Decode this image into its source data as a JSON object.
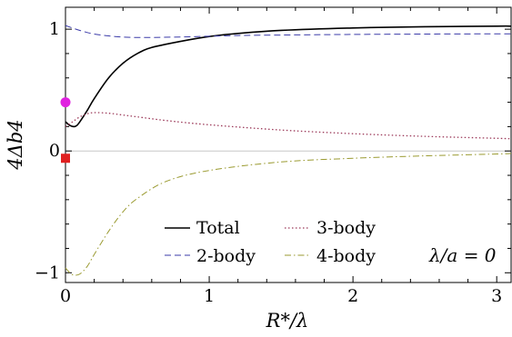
{
  "chart_data": {
    "type": "line",
    "xlabel": "R*/λ",
    "ylabel": "4Δb4",
    "xlim": [
      0,
      3.1
    ],
    "ylim": [
      -1.08,
      1.18
    ],
    "x_ticks": [
      {
        "value": 0,
        "label": "0"
      },
      {
        "value": 1,
        "label": "1"
      },
      {
        "value": 2,
        "label": "2"
      },
      {
        "value": 3,
        "label": "3"
      }
    ],
    "y_ticks": [
      {
        "value": -1,
        "label": "−1"
      },
      {
        "value": 0,
        "label": "0"
      },
      {
        "value": 1,
        "label": "1"
      }
    ],
    "zero_line": true,
    "legend_position": "bottom",
    "annotation": "λ/a = 0",
    "series": [
      {
        "name": "Total",
        "color": "#000000",
        "style": "solid",
        "x": [
          0,
          0.03,
          0.06,
          0.08,
          0.1,
          0.15,
          0.2,
          0.3,
          0.4,
          0.5,
          0.6,
          0.8,
          1.0,
          1.2,
          1.5,
          2.0,
          2.5,
          3.0,
          3.1
        ],
        "y": [
          0.24,
          0.21,
          0.2,
          0.21,
          0.24,
          0.33,
          0.43,
          0.6,
          0.72,
          0.8,
          0.85,
          0.9,
          0.94,
          0.965,
          0.99,
          1.01,
          1.02,
          1.025,
          1.025
        ]
      },
      {
        "name": "2-body",
        "color": "#3a3aa8",
        "style": "dashed",
        "x": [
          0,
          0.1,
          0.2,
          0.3,
          0.4,
          0.5,
          0.6,
          0.8,
          1.0,
          1.2,
          1.5,
          2.0,
          2.5,
          3.0,
          3.1
        ],
        "y": [
          1.03,
          0.99,
          0.96,
          0.945,
          0.935,
          0.932,
          0.932,
          0.936,
          0.942,
          0.948,
          0.952,
          0.957,
          0.96,
          0.962,
          0.962
        ]
      },
      {
        "name": "3-body",
        "color": "#9c3a5a",
        "style": "dotted",
        "x": [
          0,
          0.05,
          0.1,
          0.15,
          0.2,
          0.3,
          0.4,
          0.5,
          0.7,
          1.0,
          1.5,
          2.0,
          2.5,
          3.0,
          3.1
        ],
        "y": [
          0.2,
          0.24,
          0.28,
          0.305,
          0.315,
          0.31,
          0.295,
          0.28,
          0.25,
          0.215,
          0.172,
          0.142,
          0.12,
          0.104,
          0.1
        ]
      },
      {
        "name": "4-body",
        "color": "#9a9a30",
        "style": "dashdot",
        "x": [
          0,
          0.03,
          0.06,
          0.1,
          0.15,
          0.2,
          0.3,
          0.4,
          0.5,
          0.7,
          1.0,
          1.5,
          2.0,
          2.5,
          3.0,
          3.1
        ],
        "y": [
          -0.96,
          -1.0,
          -1.02,
          -1.01,
          -0.95,
          -0.85,
          -0.66,
          -0.5,
          -0.39,
          -0.25,
          -0.16,
          -0.09,
          -0.06,
          -0.04,
          -0.025,
          -0.02
        ]
      }
    ],
    "markers": [
      {
        "shape": "circle",
        "color": "#e020e0",
        "x": 0,
        "y": 0.4
      },
      {
        "shape": "square",
        "color": "#e02020",
        "x": 0,
        "y": -0.06
      }
    ]
  }
}
